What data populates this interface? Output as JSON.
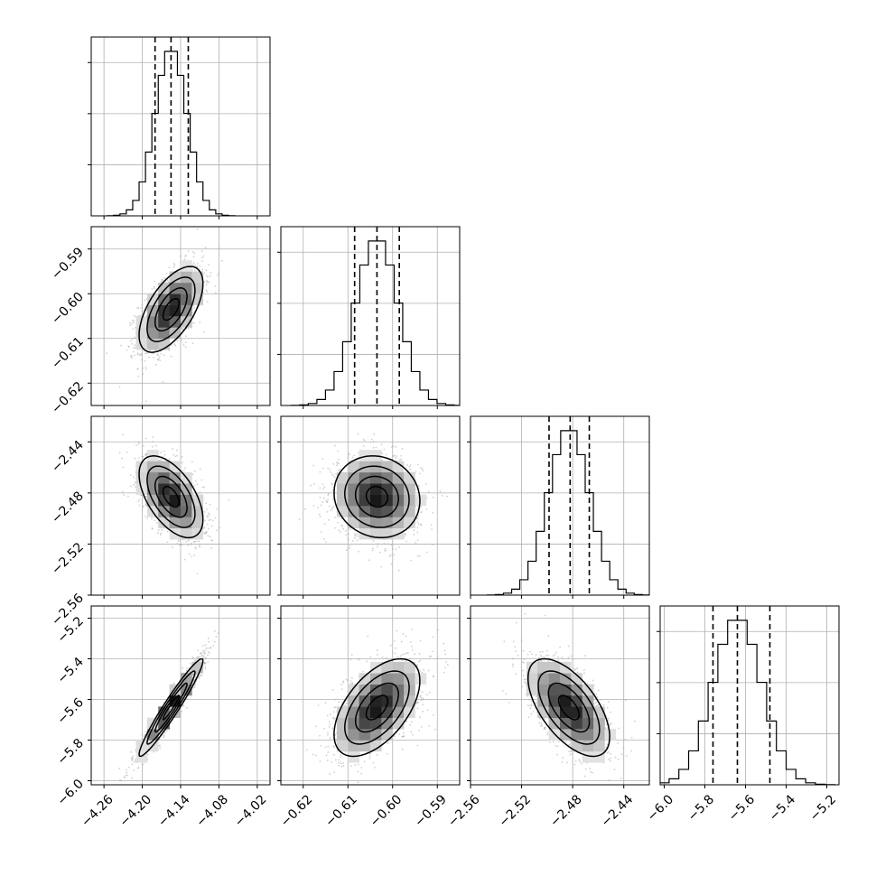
{
  "chart_data": {
    "type": "corner",
    "description_free": true,
    "n_params": 4,
    "colors": {
      "ink": "#000000",
      "grid": "#b0b0b0",
      "scatter": "#aaaaaa",
      "background": "#ffffff"
    },
    "grid": true,
    "quantile_lines": "dashed",
    "params": [
      {
        "range": [
          -4.28,
          -4.0
        ],
        "ticks": [
          -4.26,
          -4.2,
          -4.14,
          -4.08,
          -4.02
        ],
        "tick_labels": [
          "−4.26",
          "−4.20",
          "−4.14",
          "−4.08",
          "−4.02"
        ],
        "mean": -4.155,
        "sd": 0.025,
        "quantiles": [
          -4.18,
          -4.155,
          -4.128
        ]
      },
      {
        "range": [
          -0.625,
          -0.585
        ],
        "ticks": [
          -0.62,
          -0.61,
          -0.6,
          -0.59
        ],
        "tick_labels": [
          "−0.62",
          "−0.61",
          "−0.60",
          "−0.59"
        ],
        "mean": -0.6035,
        "sd": 0.0048,
        "quantiles": [
          -0.6085,
          -0.6035,
          -0.5985
        ]
      },
      {
        "range": [
          -2.56,
          -2.42
        ],
        "ticks": [
          -2.56,
          -2.52,
          -2.48,
          -2.44
        ],
        "tick_labels": [
          "−2.56",
          "−2.52",
          "−2.48",
          "−2.44"
        ],
        "mean": -2.483,
        "sd": 0.016,
        "quantiles": [
          -2.4985,
          -2.482,
          -2.467
        ]
      },
      {
        "range": [
          -6.02,
          -5.14
        ],
        "ticks": [
          -6.0,
          -5.8,
          -5.6,
          -5.4,
          -5.2
        ],
        "tick_labels": [
          "−6.0",
          "−5.8",
          "−5.6",
          "−5.4",
          "−5.2"
        ],
        "mean": -5.64,
        "sd": 0.12,
        "quantiles": [
          -5.76,
          -5.64,
          -5.48
        ]
      }
    ],
    "correlations": [
      {
        "pair": [
          0,
          1
        ],
        "rho": 0.6
      },
      {
        "pair": [
          0,
          2
        ],
        "rho": -0.55
      },
      {
        "pair": [
          0,
          3
        ],
        "rho": 0.96
      },
      {
        "pair": [
          1,
          2
        ],
        "rho": -0.1
      },
      {
        "pair": [
          1,
          3
        ],
        "rho": 0.55
      },
      {
        "pair": [
          2,
          3
        ],
        "rho": -0.6
      }
    ],
    "panels": [
      {
        "row": 0,
        "col": 0,
        "type": "histogram",
        "param": 0
      },
      {
        "row": 1,
        "col": 0,
        "type": "scatter-contour",
        "x": 0,
        "y": 1
      },
      {
        "row": 1,
        "col": 1,
        "type": "histogram",
        "param": 1
      },
      {
        "row": 2,
        "col": 0,
        "type": "scatter-contour",
        "x": 0,
        "y": 2
      },
      {
        "row": 2,
        "col": 1,
        "type": "scatter-contour",
        "x": 1,
        "y": 2
      },
      {
        "row": 2,
        "col": 2,
        "type": "histogram",
        "param": 2
      },
      {
        "row": 3,
        "col": 0,
        "type": "scatter-contour",
        "x": 0,
        "y": 3
      },
      {
        "row": 3,
        "col": 1,
        "type": "scatter-contour",
        "x": 1,
        "y": 3
      },
      {
        "row": 3,
        "col": 2,
        "type": "scatter-contour",
        "x": 2,
        "y": 3
      },
      {
        "row": 3,
        "col": 3,
        "type": "histogram",
        "param": 3
      }
    ],
    "contour_levels_sigma": [
      0.5,
      1.0,
      1.5,
      2.0
    ]
  }
}
